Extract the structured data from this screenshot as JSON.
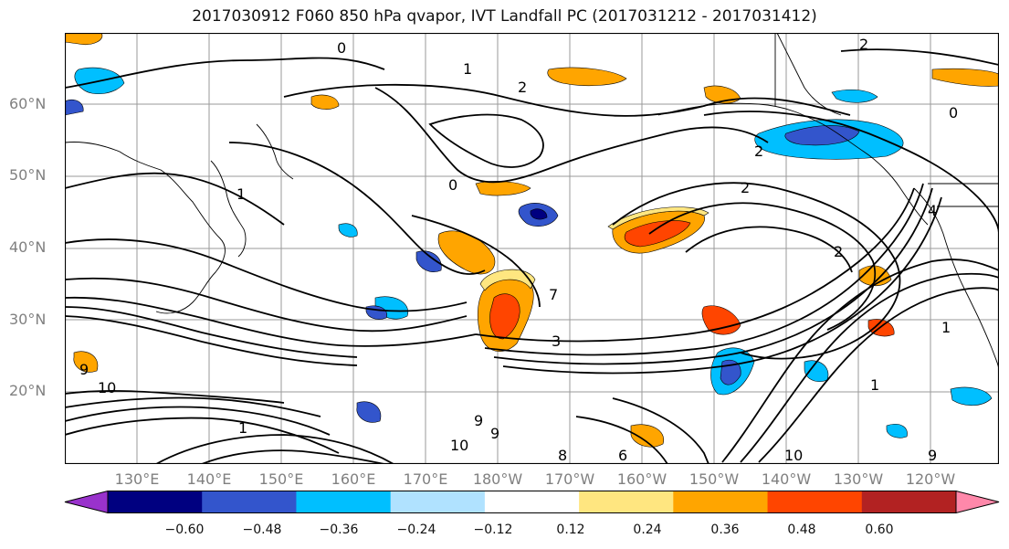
{
  "title": "2017030912 F060 850 hPa qvapor, IVT Landfall PC (2017031212 - 2017031412)",
  "map": {
    "latitude_labels": [
      "60°N",
      "50°N",
      "40°N",
      "30°N",
      "20°N"
    ],
    "longitude_labels": [
      "130°E",
      "140°E",
      "150°E",
      "160°E",
      "170°E",
      "180°W",
      "170°W",
      "160°W",
      "150°W",
      "140°W",
      "130°W",
      "120°W"
    ],
    "contour_labels": [
      "0",
      "1",
      "2",
      "0",
      "2",
      "2",
      "1",
      "2",
      "1",
      "7",
      "3",
      "10",
      "9",
      "9",
      "10",
      "9",
      "6",
      "10",
      "9",
      "8",
      "1",
      "0",
      "2",
      "1",
      "4"
    ]
  },
  "colorbar": {
    "ticks": [
      "−0.60",
      "−0.48",
      "−0.36",
      "−0.24",
      "−0.12",
      "0.12",
      "0.24",
      "0.36",
      "0.48",
      "0.60"
    ],
    "colors": [
      "#9932cc",
      "#000080",
      "#3355cc",
      "#00bfff",
      "#b0e2ff",
      "#ffffff",
      "#ffe680",
      "#ffa500",
      "#ff4500",
      "#b22222",
      "#ff88aa"
    ]
  },
  "colors": {
    "frame": "#000000",
    "grid": "#9a9a9a",
    "coast": "#000000",
    "label_gray": "#808080"
  }
}
